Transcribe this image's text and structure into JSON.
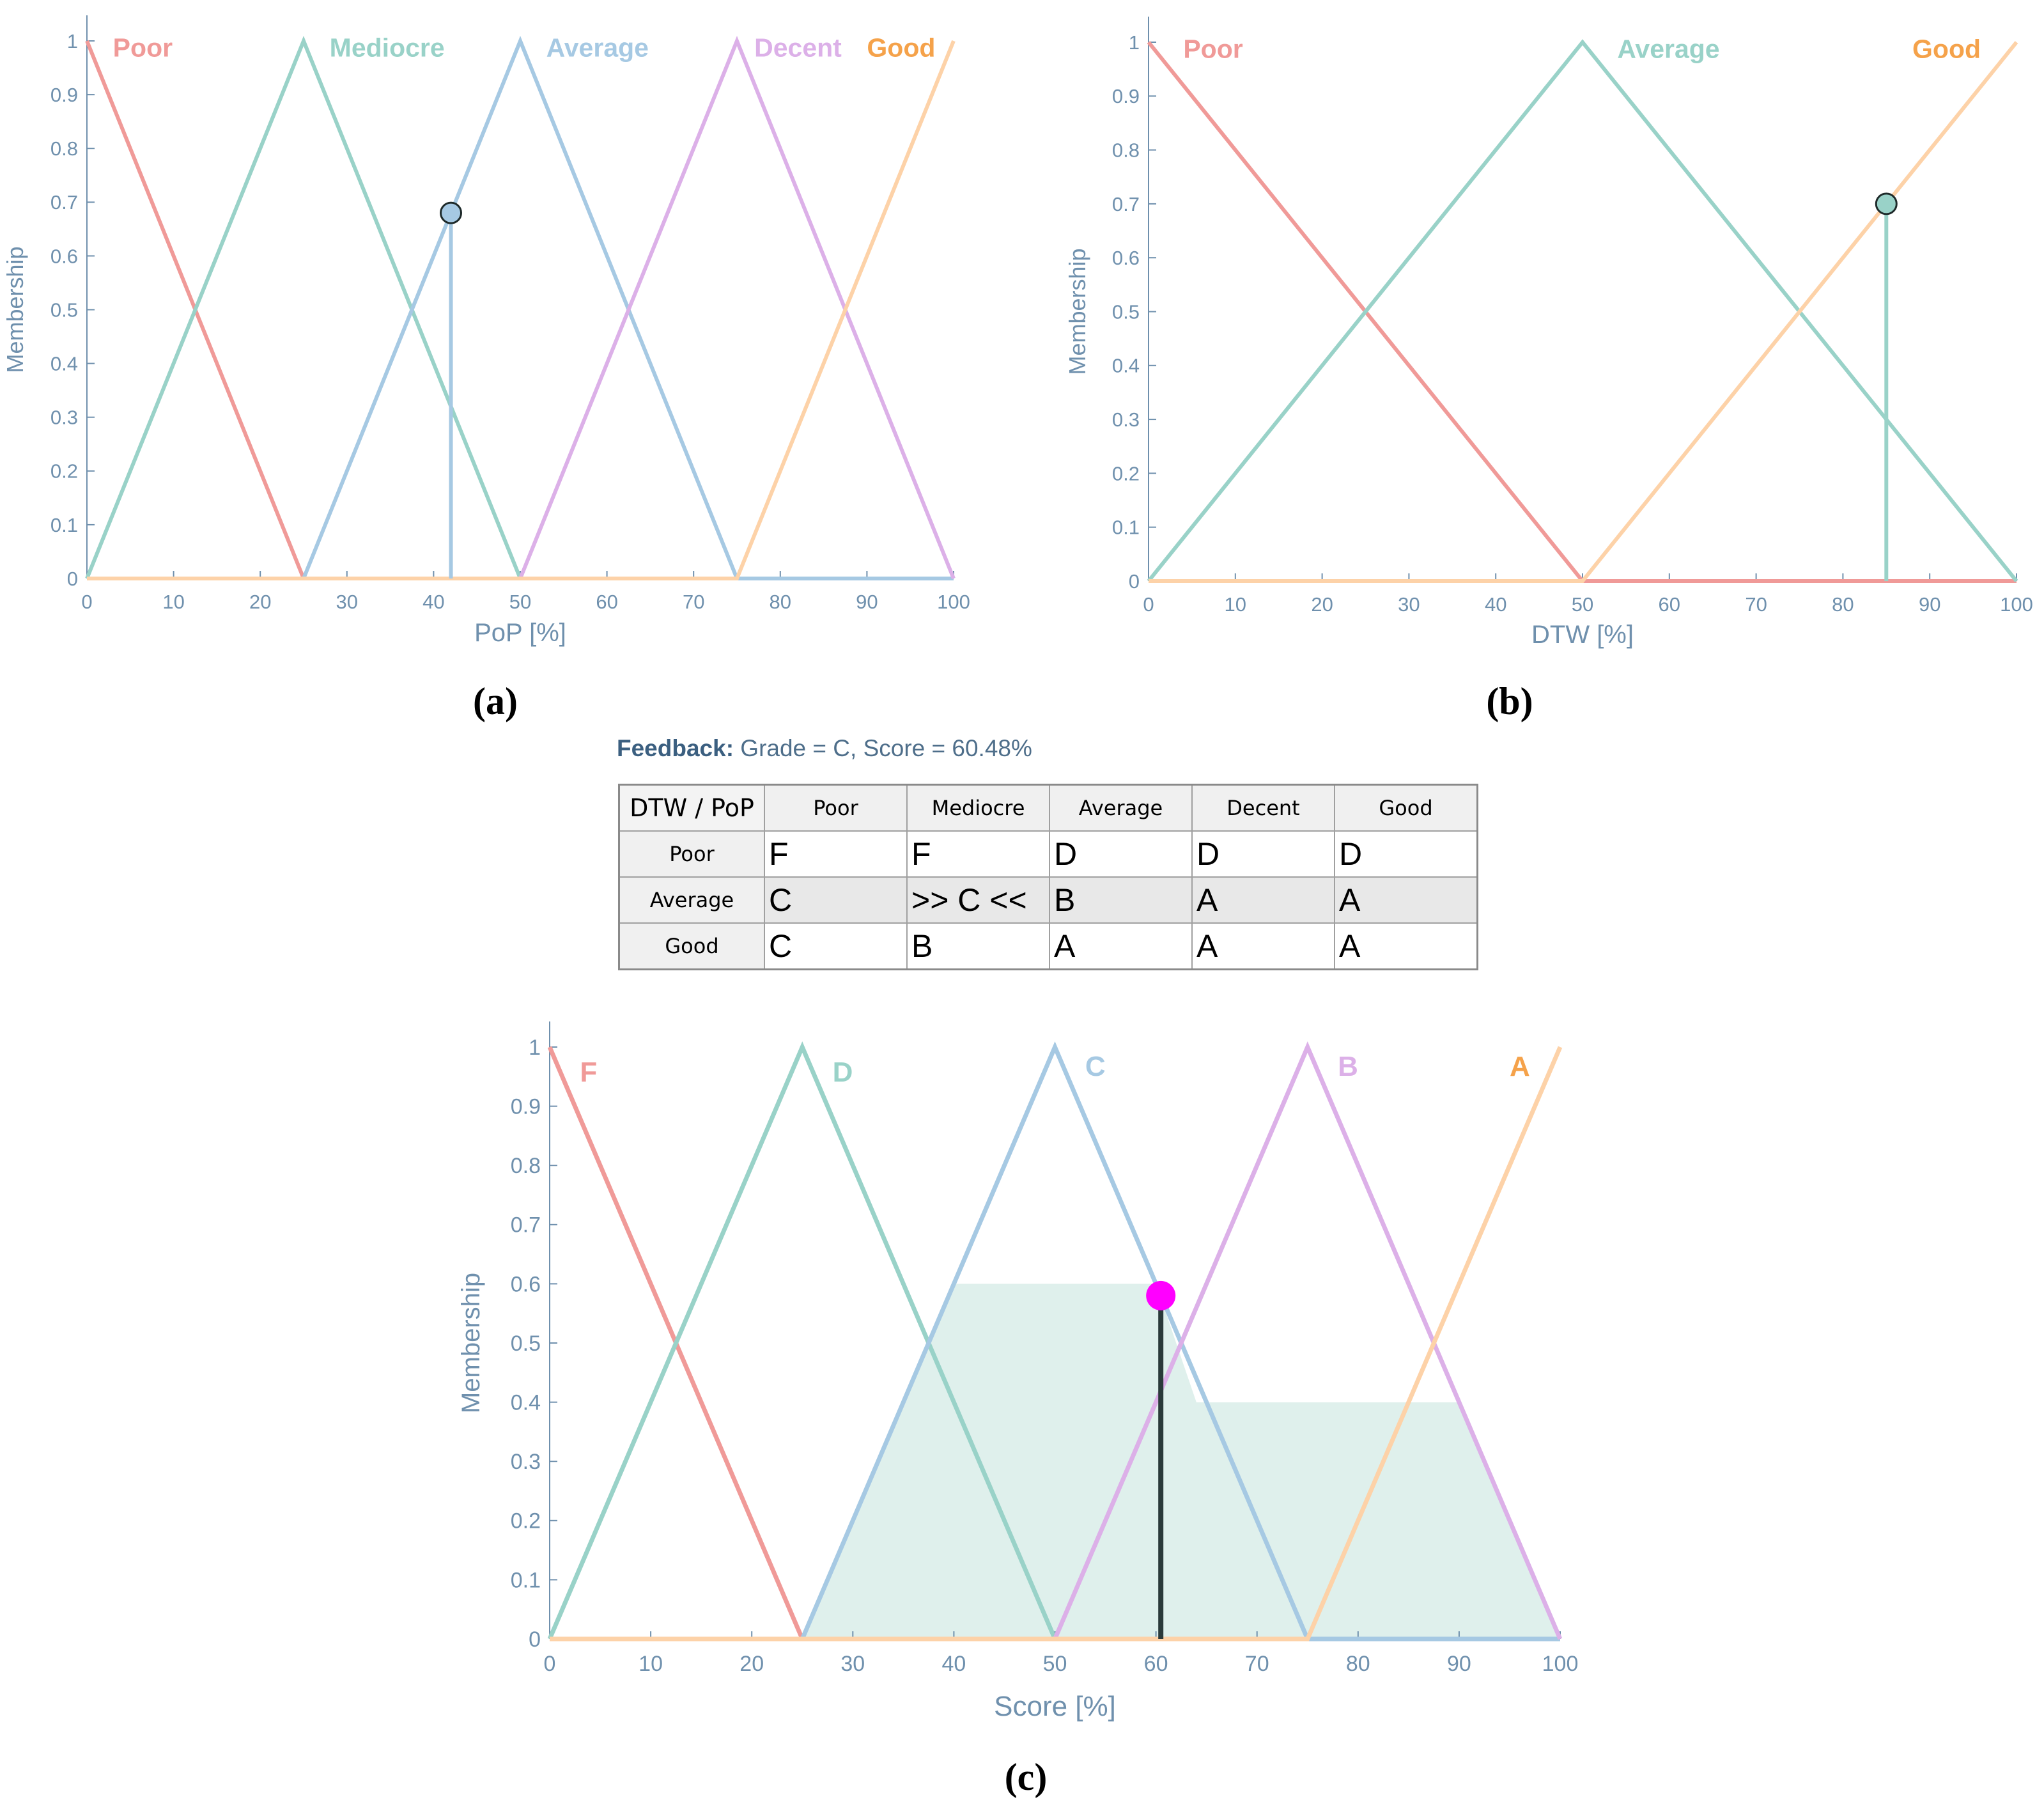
{
  "panels": {
    "a": "(a)",
    "b": "(b)",
    "c": "(c)"
  },
  "feedback": {
    "label": "Feedback:",
    "text": "Grade = C, Score = 60.48%"
  },
  "table": {
    "corner": "DTW / PoP",
    "columns": [
      "Poor",
      "Mediocre",
      "Average",
      "Decent",
      "Good"
    ],
    "rows": [
      {
        "label": "Poor",
        "cells": [
          "F",
          "F",
          "D",
          "D",
          "D"
        ]
      },
      {
        "label": "Average",
        "cells": [
          "C",
          ">> C <<",
          "B",
          "A",
          "A"
        ]
      },
      {
        "label": "Good",
        "cells": [
          "C",
          "B",
          "A",
          "A",
          "A"
        ]
      }
    ]
  },
  "colors": {
    "red": "#f09a98",
    "teal": "#99d2c8",
    "blue": "#a6c9e3",
    "purple": "#dcb0e8",
    "orange": "#fdd2a8",
    "axis": "#6f90ad",
    "marker_magenta": "#ff00ff"
  },
  "chart_data": [
    {
      "type": "line",
      "panel": "a",
      "xlabel": "PoP [%]",
      "ylabel": "Membership",
      "xlim": [
        0,
        100
      ],
      "ylim": [
        0,
        1
      ],
      "xticks": [
        0,
        10,
        20,
        30,
        40,
        50,
        60,
        70,
        80,
        90,
        100
      ],
      "yticks": [
        0,
        0.1,
        0.2,
        0.3,
        0.4,
        0.5,
        0.6,
        0.7,
        0.8,
        0.9,
        1
      ],
      "series": [
        {
          "name": "Poor",
          "color": "#f09a98",
          "label_color": "#f09a98",
          "x": [
            0,
            25,
            100
          ],
          "y": [
            1,
            0,
            0
          ],
          "label_at": [
            3,
            1
          ]
        },
        {
          "name": "Mediocre",
          "color": "#99d2c8",
          "label_color": "#99d2c8",
          "x": [
            0,
            25,
            50,
            100
          ],
          "y": [
            0,
            1,
            0,
            0
          ],
          "label_at": [
            28,
            1
          ]
        },
        {
          "name": "Average",
          "color": "#a6c9e3",
          "label_color": "#a6c9e3",
          "x": [
            0,
            25,
            50,
            75,
            100
          ],
          "y": [
            0,
            0,
            1,
            0,
            0
          ],
          "label_at": [
            53,
            1
          ]
        },
        {
          "name": "Decent",
          "color": "#dcb0e8",
          "label_color": "#dcb0e8",
          "x": [
            0,
            50,
            75,
            100
          ],
          "y": [
            0,
            0,
            1,
            0
          ],
          "label_at": [
            77,
            1
          ]
        },
        {
          "name": "Good",
          "color": "#fdd2a8",
          "label_color": "#f5a24a",
          "x": [
            0,
            75,
            100
          ],
          "y": [
            0,
            0,
            1
          ],
          "label_at": [
            90,
            1
          ]
        }
      ],
      "marker": {
        "x": 42,
        "y": 0.68,
        "fill": "#a6c9e3",
        "stem_color": "#a6c9e3"
      }
    },
    {
      "type": "line",
      "panel": "b",
      "xlabel": "DTW [%]",
      "ylabel": "Membership",
      "xlim": [
        0,
        100
      ],
      "ylim": [
        0,
        1
      ],
      "xticks": [
        0,
        10,
        20,
        30,
        40,
        50,
        60,
        70,
        80,
        90,
        100
      ],
      "yticks": [
        0,
        0.1,
        0.2,
        0.3,
        0.4,
        0.5,
        0.6,
        0.7,
        0.8,
        0.9,
        1
      ],
      "series": [
        {
          "name": "Poor",
          "color": "#f09a98",
          "label_color": "#f09a98",
          "x": [
            0,
            50,
            100
          ],
          "y": [
            1,
            0,
            0
          ],
          "label_at": [
            4,
            1
          ]
        },
        {
          "name": "Average",
          "color": "#99d2c8",
          "label_color": "#99d2c8",
          "x": [
            0,
            50,
            100
          ],
          "y": [
            0,
            1,
            0
          ],
          "label_at": [
            54,
            1
          ]
        },
        {
          "name": "Good",
          "color": "#fdd2a8",
          "label_color": "#f5a24a",
          "x": [
            0,
            50,
            100
          ],
          "y": [
            0,
            0,
            1
          ],
          "label_at": [
            88,
            1
          ]
        }
      ],
      "marker": {
        "x": 85,
        "y": 0.7,
        "fill": "#99d2c8",
        "stem_color": "#99d2c8"
      }
    },
    {
      "type": "area",
      "panel": "c",
      "xlabel": "Score [%]",
      "ylabel": "Membership",
      "xlim": [
        0,
        100
      ],
      "ylim": [
        0,
        1
      ],
      "xticks": [
        0,
        10,
        20,
        30,
        40,
        50,
        60,
        70,
        80,
        90,
        100
      ],
      "yticks": [
        0,
        0.1,
        0.2,
        0.3,
        0.4,
        0.5,
        0.6,
        0.7,
        0.8,
        0.9,
        1
      ],
      "aggregate": {
        "color": "#dff0ec",
        "x": [
          25,
          40,
          60,
          64,
          90,
          100
        ],
        "y": [
          0,
          0.6,
          0.6,
          0.4,
          0.4,
          0
        ]
      },
      "series": [
        {
          "name": "F",
          "color": "#f09a98",
          "label_color": "#f09a98",
          "x": [
            0,
            25,
            100
          ],
          "y": [
            1,
            0,
            0
          ],
          "label_at": [
            3,
            0.97
          ]
        },
        {
          "name": "D",
          "color": "#99d2c8",
          "label_color": "#99d2c8",
          "x": [
            0,
            25,
            50,
            100
          ],
          "y": [
            0,
            1,
            0,
            0
          ],
          "label_at": [
            28,
            0.97
          ]
        },
        {
          "name": "C",
          "color": "#a6c9e3",
          "label_color": "#a6c9e3",
          "x": [
            0,
            25,
            50,
            75,
            100
          ],
          "y": [
            0,
            0,
            1,
            0,
            0
          ],
          "label_at": [
            53,
            0.98
          ]
        },
        {
          "name": "B",
          "color": "#dcb0e8",
          "label_color": "#dcb0e8",
          "x": [
            0,
            50,
            75,
            100
          ],
          "y": [
            0,
            0,
            1,
            0
          ],
          "label_at": [
            78,
            0.98
          ]
        },
        {
          "name": "A",
          "color": "#fdd2a8",
          "label_color": "#f5a24a",
          "x": [
            0,
            75,
            100
          ],
          "y": [
            0,
            0,
            1
          ],
          "label_at": [
            95,
            0.98
          ]
        }
      ],
      "marker": {
        "x": 60.48,
        "y": 0.58,
        "fill": "#ff00ff",
        "stem_color": "#2a3a3a"
      }
    }
  ]
}
